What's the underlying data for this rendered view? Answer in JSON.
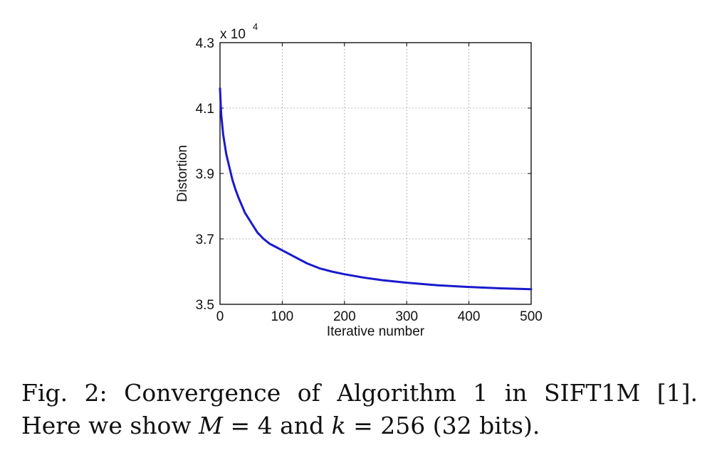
{
  "chart_data": {
    "type": "line",
    "xlabel": "Iterative number",
    "ylabel": "Distortion",
    "y_multiplier": "x 10",
    "y_multiplier_exp": "4",
    "xlim": [
      0,
      500
    ],
    "ylim": [
      3.5,
      4.3
    ],
    "xticks": [
      0,
      100,
      200,
      300,
      400,
      500
    ],
    "xtick_labels": [
      "0",
      "100",
      "200",
      "300",
      "400",
      "500"
    ],
    "yticks": [
      3.5,
      3.7,
      3.9,
      4.1,
      4.3
    ],
    "ytick_labels": [
      "3.5",
      "3.7",
      "3.9",
      "4.1",
      "4.3"
    ],
    "grid": true,
    "line_color": "#1a1acc",
    "series": [
      {
        "x": [
          0,
          2,
          5,
          10,
          15,
          20,
          25,
          30,
          40,
          50,
          60,
          70,
          80,
          90,
          100,
          120,
          140,
          160,
          180,
          200,
          230,
          260,
          300,
          350,
          400,
          450,
          500
        ],
        "values": [
          4.16,
          4.08,
          4.02,
          3.96,
          3.92,
          3.88,
          3.85,
          3.825,
          3.78,
          3.75,
          3.72,
          3.7,
          3.685,
          3.675,
          3.665,
          3.645,
          3.625,
          3.61,
          3.6,
          3.592,
          3.582,
          3.574,
          3.566,
          3.558,
          3.553,
          3.549,
          3.546
        ]
      }
    ]
  },
  "caption": {
    "fig_label": "Fig. 2:",
    "words_line1": [
      "Fig.",
      "2:",
      "Convergence",
      "of",
      "Algorithm",
      "1",
      "in",
      "SIFT1M",
      "[1]."
    ],
    "line2_text_a": "Here we show ",
    "line2_math_M": "M",
    "line2_eq1": " = 4 ",
    "line2_text_b": "and ",
    "line2_math_k": "k",
    "line2_eq2": " = 256 ",
    "line2_text_c": "(32 bits)."
  }
}
